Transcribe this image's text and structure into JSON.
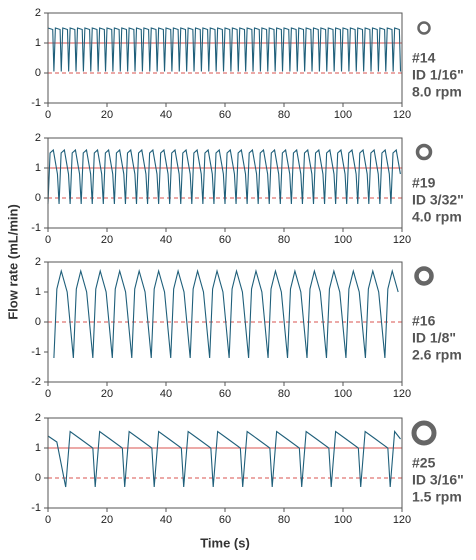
{
  "ylabel": "Flow rate (mL/min)",
  "xlabel": "Time (s)",
  "chart_data": [
    {
      "type": "line",
      "color": "#1f5f7a",
      "xlim": [
        0,
        120
      ],
      "xticks": [
        0,
        20,
        40,
        60,
        80,
        100,
        120
      ],
      "ylim": [
        -1,
        2
      ],
      "yticks": [
        -1,
        0,
        1,
        2
      ],
      "reference_lines": [
        {
          "value": 1,
          "style": "solid"
        },
        {
          "value": 0,
          "style": "dashed"
        }
      ],
      "reference_color": "#d9534f",
      "annotations": [
        "#14",
        "ID 1/16\"",
        "8.0 rpm"
      ],
      "x": [
        0,
        1.6,
        2,
        2.5,
        4.1,
        4.5,
        5,
        6.6,
        7,
        7.5,
        9.1,
        9.5,
        10,
        11.6,
        12,
        12.5,
        14.1,
        14.5,
        15,
        16.6,
        17,
        17.5,
        19.1,
        19.5,
        20,
        21.6,
        22,
        22.5,
        24.1,
        24.5,
        25,
        26.6,
        27,
        27.5,
        29.1,
        29.5,
        30,
        31.6,
        32,
        32.5,
        34.1,
        34.5,
        35,
        36.6,
        37,
        37.5,
        39.1,
        39.5,
        40,
        41.6,
        42,
        42.5,
        44.1,
        44.5,
        45,
        46.6,
        47,
        47.5,
        49.1,
        49.5,
        50,
        51.6,
        52,
        52.5,
        54.1,
        54.5,
        55,
        56.6,
        57,
        57.5,
        59.1,
        59.5,
        60,
        61.6,
        62,
        62.5,
        64.1,
        64.5,
        65,
        66.6,
        67,
        67.5,
        69.1,
        69.5,
        70,
        71.6,
        72,
        72.5,
        74.1,
        74.5,
        75,
        76.6,
        77,
        77.5,
        79.1,
        79.5,
        80,
        81.6,
        82,
        82.5,
        84.1,
        84.5,
        85,
        86.6,
        87,
        87.5,
        89.1,
        89.5,
        90,
        91.6,
        92,
        92.5,
        94.1,
        94.5,
        95,
        96.6,
        97,
        97.5,
        99.1,
        99.5,
        100,
        101.6,
        102,
        102.5,
        104.1,
        104.5,
        105,
        106.6,
        107,
        107.5,
        109.1,
        109.5,
        110,
        111.6,
        112,
        112.5,
        114.1,
        114.5,
        115,
        116.6,
        117,
        117.5,
        119.1,
        119.5
      ],
      "values": [
        1.5,
        1.45,
        0.05,
        1.5,
        1.45,
        0.05,
        1.5,
        1.45,
        0.05,
        1.5,
        1.45,
        0.05,
        1.5,
        1.45,
        0.05,
        1.5,
        1.45,
        0.05,
        1.5,
        1.45,
        0.05,
        1.5,
        1.45,
        0.05,
        1.5,
        1.45,
        0.05,
        1.5,
        1.45,
        0.05,
        1.5,
        1.45,
        0.05,
        1.5,
        1.45,
        0.05,
        1.5,
        1.45,
        0.05,
        1.5,
        1.45,
        0.05,
        1.5,
        1.45,
        0.05,
        1.5,
        1.45,
        0.05,
        1.5,
        1.45,
        0.05,
        1.5,
        1.45,
        0.05,
        1.5,
        1.45,
        0.05,
        1.5,
        1.45,
        0.05,
        1.5,
        1.45,
        0.05,
        1.5,
        1.45,
        0.05,
        1.5,
        1.45,
        0.05,
        1.5,
        1.45,
        0.05,
        1.5,
        1.45,
        0.05,
        1.5,
        1.45,
        0.05,
        1.5,
        1.45,
        0.05,
        1.5,
        1.45,
        0.05,
        1.5,
        1.45,
        0.05,
        1.5,
        1.45,
        0.05,
        1.5,
        1.45,
        0.05,
        1.5,
        1.45,
        0.05,
        1.5,
        1.45,
        0.05,
        1.5,
        1.45,
        0.05,
        1.5,
        1.45,
        0.05,
        1.5,
        1.45,
        0.05,
        1.5,
        1.45,
        0.05,
        1.5,
        1.45,
        0.05,
        1.5,
        1.45,
        0.05,
        1.5,
        1.45,
        0.05,
        1.5,
        1.45,
        0.05,
        1.5,
        1.45,
        0.05,
        1.5,
        1.45,
        0.05,
        1.5,
        1.45,
        0.05,
        1.5,
        1.45,
        0.05,
        1.5,
        1.45,
        0.05,
        1.5,
        1.45,
        0.05,
        1.5,
        1.45,
        0.05
      ]
    },
    {
      "type": "line",
      "color": "#1f5f7a",
      "xlim": [
        0,
        120
      ],
      "xticks": [
        0,
        20,
        40,
        60,
        80,
        100,
        120
      ],
      "ylim": [
        -1,
        2
      ],
      "yticks": [
        -1,
        0,
        1,
        2
      ],
      "reference_lines": [
        {
          "value": 1,
          "style": "solid"
        },
        {
          "value": 0,
          "style": "dashed"
        }
      ],
      "reference_color": "#d9534f",
      "annotations": [
        "#19",
        "ID 3/32\"",
        "4.0 rpm"
      ],
      "x": [
        0,
        0.7,
        1.8,
        3.2,
        3.75,
        4.45,
        5.55,
        6.95,
        7.5,
        8.2,
        9.3,
        10.7,
        11.25,
        11.95,
        13.05,
        14.45,
        15,
        15.7,
        16.8,
        18.2,
        18.75,
        19.45,
        20.55,
        21.95,
        22.5,
        23.2,
        24.3,
        25.7,
        26.25,
        26.95,
        28.05,
        29.45,
        30,
        30.7,
        31.8,
        33.2,
        33.75,
        34.45,
        35.55,
        36.95,
        37.5,
        38.2,
        39.3,
        40.7,
        41.25,
        41.95,
        43.05,
        44.45,
        45,
        45.7,
        46.8,
        48.2,
        48.75,
        49.45,
        50.55,
        51.95,
        52.5,
        53.2,
        54.3,
        55.7,
        56.25,
        56.95,
        58.05,
        59.45,
        60,
        60.7,
        61.8,
        63.2,
        63.75,
        64.45,
        65.55,
        66.95,
        67.5,
        68.2,
        69.3,
        70.7,
        71.25,
        71.95,
        73.05,
        74.45,
        75,
        75.7,
        76.8,
        78.2,
        78.75,
        79.45,
        80.55,
        81.95,
        82.5,
        83.2,
        84.3,
        85.7,
        86.25,
        86.95,
        88.05,
        89.45,
        90,
        90.7,
        91.8,
        93.2,
        93.75,
        94.45,
        95.55,
        96.95,
        97.5,
        98.2,
        99.3,
        100.7,
        101.25,
        101.95,
        103.05,
        104.45,
        105,
        105.7,
        106.8,
        108.2,
        108.75,
        109.45,
        110.55,
        111.95,
        112.5,
        113.2,
        114.3,
        115.7,
        116.25,
        116.95,
        118.05,
        119.45
      ],
      "values": [
        -0.2,
        1.5,
        1.6,
        0.8,
        -0.2,
        1.5,
        1.6,
        0.8,
        -0.2,
        1.5,
        1.6,
        0.8,
        -0.2,
        1.5,
        1.6,
        0.8,
        -0.2,
        1.5,
        1.6,
        0.8,
        -0.2,
        1.5,
        1.6,
        0.8,
        -0.2,
        1.5,
        1.6,
        0.8,
        -0.2,
        1.5,
        1.6,
        0.8,
        -0.2,
        1.5,
        1.6,
        0.8,
        -0.2,
        1.5,
        1.6,
        0.8,
        -0.2,
        1.5,
        1.6,
        0.8,
        -0.2,
        1.5,
        1.6,
        0.8,
        -0.2,
        1.5,
        1.6,
        0.8,
        -0.2,
        1.5,
        1.6,
        0.8,
        -0.2,
        1.5,
        1.6,
        0.8,
        -0.2,
        1.5,
        1.6,
        0.8,
        -0.2,
        1.5,
        1.6,
        0.8,
        -0.2,
        1.5,
        1.6,
        0.8,
        -0.2,
        1.5,
        1.6,
        0.8,
        -0.2,
        1.5,
        1.6,
        0.8,
        -0.2,
        1.5,
        1.6,
        0.8,
        -0.2,
        1.5,
        1.6,
        0.8,
        -0.2,
        1.5,
        1.6,
        0.8,
        -0.2,
        1.5,
        1.6,
        0.8,
        -0.2,
        1.5,
        1.6,
        0.8,
        -0.2,
        1.5,
        1.6,
        0.8,
        -0.2,
        1.5,
        1.6,
        0.8,
        -0.2,
        1.5,
        1.6,
        0.8,
        -0.2,
        1.5,
        1.6,
        0.8,
        -0.2,
        1.5,
        1.6,
        0.8,
        -0.2,
        1.5,
        1.6,
        0.8,
        -0.2,
        1.5,
        1.6,
        0.8
      ]
    },
    {
      "type": "line",
      "color": "#1f5f7a",
      "xlim": [
        0,
        120
      ],
      "xticks": [
        0,
        20,
        40,
        60,
        80,
        100,
        120
      ],
      "ylim": [
        -2,
        2
      ],
      "yticks": [
        -2,
        -1,
        0,
        1,
        2
      ],
      "reference_lines": [
        {
          "value": 0,
          "style": "dashed"
        }
      ],
      "reference_color": "#d9534f",
      "annotations": [
        "#16",
        "ID 1/8\"",
        "2.6 rpm"
      ],
      "x": [
        2,
        3,
        4.5,
        6.5,
        8.6,
        9.6,
        11.1,
        13.1,
        15.2,
        16.2,
        17.7,
        19.7,
        21.8,
        22.8,
        24.3,
        26.3,
        28.4,
        29.4,
        30.9,
        32.9,
        35,
        36,
        37.5,
        39.5,
        41.6,
        42.6,
        44.1,
        46.1,
        48.2,
        49.2,
        50.7,
        52.7,
        54.8,
        55.8,
        57.3,
        59.3,
        61.4,
        62.4,
        63.9,
        65.9,
        68,
        69,
        70.5,
        72.5,
        74.6,
        75.6,
        77.1,
        79.1,
        81.2,
        82.2,
        83.7,
        85.7,
        87.8,
        88.8,
        90.3,
        92.3,
        94.4,
        95.4,
        96.9,
        98.9,
        101,
        102,
        103.5,
        105.5,
        107.6,
        108.6,
        110.1,
        112.1,
        114.2,
        115.2,
        116.7,
        118.7
      ],
      "values": [
        -1.2,
        1.1,
        1.7,
        1.0,
        -1.2,
        1.1,
        1.7,
        1.0,
        -1.2,
        1.1,
        1.7,
        1.0,
        -1.2,
        1.1,
        1.7,
        1.0,
        -1.2,
        1.1,
        1.7,
        1.0,
        -1.2,
        1.1,
        1.7,
        1.0,
        -1.2,
        1.1,
        1.7,
        1.0,
        -1.2,
        1.1,
        1.7,
        1.0,
        -1.2,
        1.1,
        1.7,
        1.0,
        -1.2,
        1.1,
        1.7,
        1.0,
        -1.2,
        1.1,
        1.7,
        1.0,
        -1.2,
        1.1,
        1.7,
        1.0,
        -1.2,
        1.1,
        1.7,
        1.0,
        -1.2,
        1.1,
        1.7,
        1.0,
        -1.2,
        1.1,
        1.7,
        1.0,
        -1.2,
        1.1,
        1.7,
        1.0,
        -1.2,
        1.1,
        1.7,
        1.0,
        -1.2,
        1.1,
        1.7,
        1.0
      ]
    },
    {
      "type": "line",
      "color": "#1f5f7a",
      "xlim": [
        0,
        120
      ],
      "xticks": [
        0,
        20,
        40,
        60,
        80,
        100,
        120
      ],
      "ylim": [
        -1,
        2
      ],
      "yticks": [
        -1,
        0,
        1,
        2
      ],
      "reference_lines": [
        {
          "value": 1,
          "style": "solid"
        },
        {
          "value": 0,
          "style": "dashed"
        }
      ],
      "reference_color": "#d9534f",
      "annotations": [
        "#25",
        "ID 3/16\"",
        "1.5 rpm"
      ],
      "x": [
        0,
        3,
        6,
        7.5,
        11,
        15.2,
        16,
        17.5,
        21,
        25.2,
        26,
        27.5,
        31,
        35.2,
        36,
        37.5,
        41,
        45.2,
        46,
        47.5,
        51,
        55.2,
        56,
        57.5,
        61,
        65.2,
        66,
        67.5,
        71,
        75.2,
        76,
        77.5,
        81,
        85.2,
        86,
        87.5,
        91,
        95.2,
        96,
        97.5,
        101,
        105.2,
        106,
        107.5,
        111,
        115.2,
        116,
        117.5,
        119.5
      ],
      "values": [
        1.4,
        1.2,
        -0.3,
        1.55,
        1.3,
        1.0,
        -0.3,
        1.55,
        1.3,
        1.0,
        -0.3,
        1.55,
        1.3,
        1.0,
        -0.3,
        1.55,
        1.3,
        1.0,
        -0.3,
        1.55,
        1.3,
        1.0,
        -0.3,
        1.55,
        1.3,
        1.0,
        -0.3,
        1.55,
        1.3,
        1.0,
        -0.3,
        1.55,
        1.3,
        1.0,
        -0.3,
        1.55,
        1.3,
        1.0,
        -0.3,
        1.55,
        1.3,
        1.0,
        -0.3,
        1.55,
        1.3,
        1.0,
        -0.3,
        1.55,
        1.3
      ]
    }
  ]
}
